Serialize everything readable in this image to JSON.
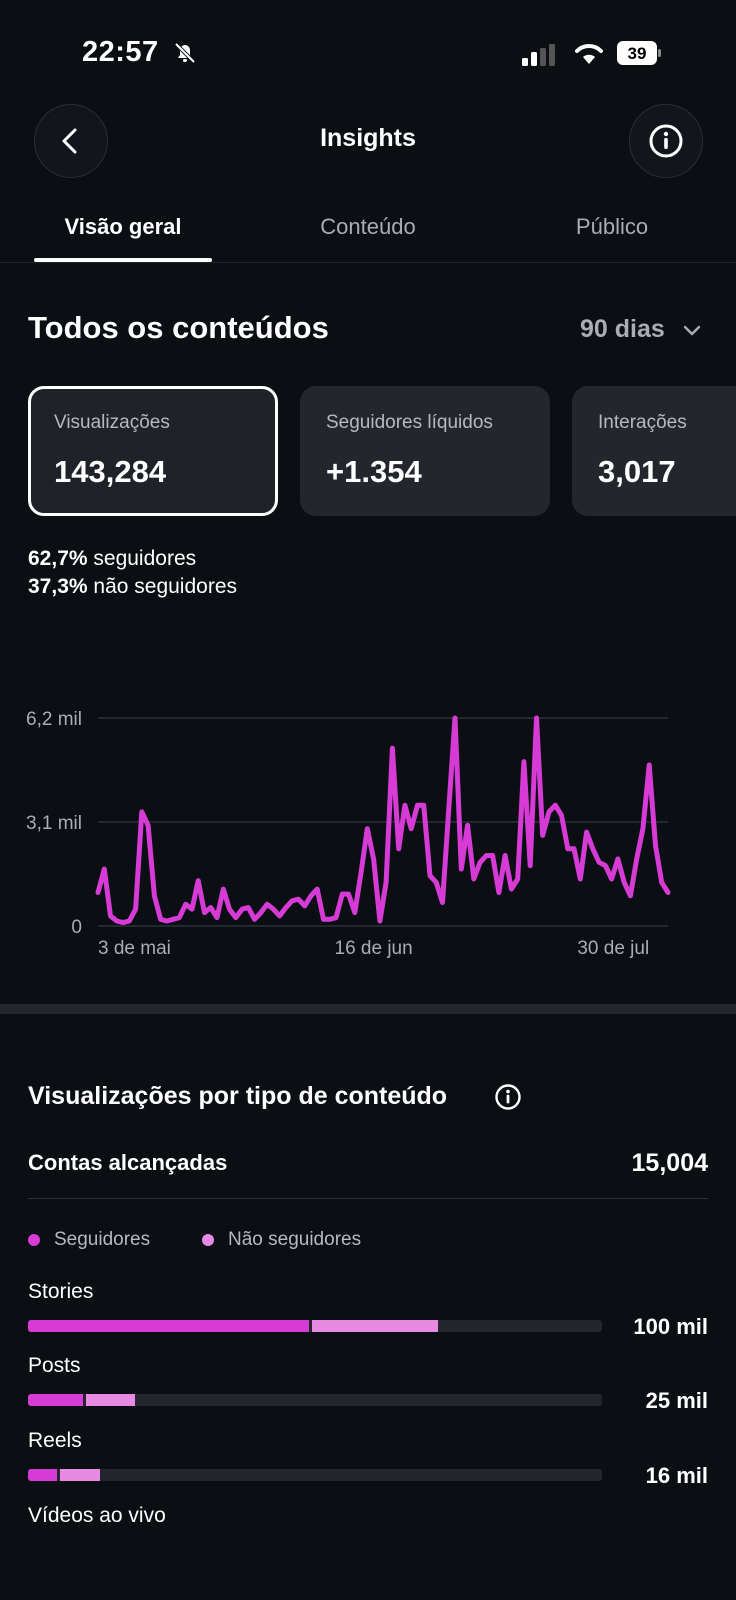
{
  "status_bar": {
    "time": "22:57",
    "battery": "39"
  },
  "header": {
    "title": "Insights"
  },
  "tabs": [
    {
      "label": "Visão geral",
      "active": true
    },
    {
      "label": "Conteúdo",
      "active": false
    },
    {
      "label": "Público",
      "active": false
    }
  ],
  "overview": {
    "section_title": "Todos os conteúdos",
    "period": "90 dias",
    "cards": [
      {
        "label": "Visualizações",
        "value": "143,284",
        "selected": true
      },
      {
        "label": "Seguidores líquidos",
        "value": "+1.354",
        "selected": false
      },
      {
        "label": "Interações",
        "value": "3,017",
        "selected": false
      }
    ],
    "split": {
      "followers_pct": "62,7%",
      "followers_label": "seguidores",
      "non_followers_pct": "37,3%",
      "non_followers_label": "não seguidores"
    }
  },
  "chart_data": {
    "type": "line",
    "y_tick_labels": [
      "6,2 mil",
      "3,1 mil",
      "0"
    ],
    "y_ticks": [
      6200,
      3100,
      0
    ],
    "ylim": [
      0,
      6200
    ],
    "x_tick_labels": [
      "3 de mai",
      "16 de jun",
      "30 de jul"
    ],
    "x_tick_index": [
      0,
      44,
      88
    ],
    "color": "#d63bd6",
    "grid": true,
    "series": [
      {
        "values": [
          1000,
          1700,
          300,
          150,
          100,
          150,
          500,
          3400,
          3000,
          900,
          200,
          150,
          200,
          250,
          650,
          500,
          1350,
          400,
          550,
          250,
          1100,
          500,
          250,
          500,
          550,
          200,
          400,
          650,
          500,
          300,
          550,
          750,
          800,
          600,
          900,
          1100,
          200,
          200,
          250,
          950,
          950,
          400,
          1600,
          2900,
          2000,
          150,
          1300,
          5300,
          2300,
          3600,
          2900,
          3600,
          3600,
          1500,
          1300,
          700,
          3500,
          6200,
          1700,
          3000,
          1400,
          1900,
          2100,
          2100,
          1000,
          2100,
          1100,
          1400,
          4900,
          1800,
          6200,
          2700,
          3400,
          3600,
          3300,
          2300,
          2300,
          1400,
          2800,
          2300,
          1900,
          1800,
          1400,
          2000,
          1300,
          900,
          2000,
          2900,
          4800,
          2400,
          1300,
          1000
        ]
      }
    ]
  },
  "content_type": {
    "title": "Visualizações por tipo de conteúdo",
    "reach_label": "Contas alcançadas",
    "reach_value": "15,004",
    "legend": [
      {
        "label": "Seguidores",
        "color": "#d63bd6"
      },
      {
        "label": "Não seguidores",
        "color": "#e88ae4"
      }
    ],
    "bars": [
      {
        "label": "Stories",
        "value": "100 mil",
        "followers": 0.49,
        "non_followers": 0.22
      },
      {
        "label": "Posts",
        "value": "25 mil",
        "followers": 0.095,
        "non_followers": 0.085
      },
      {
        "label": "Reels",
        "value": "16 mil",
        "followers": 0.05,
        "non_followers": 0.07
      },
      {
        "label": "Vídeos ao vivo",
        "value": "",
        "followers": 0,
        "non_followers": 0
      }
    ]
  }
}
